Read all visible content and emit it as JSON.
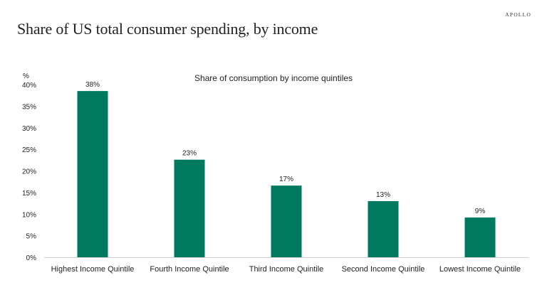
{
  "header": {
    "title": "Share of US total consumer spending, by income",
    "logo": "APOLLO"
  },
  "chart_data": {
    "type": "bar",
    "title": "Share of consumption by income quintiles",
    "ylabel": "%",
    "categories": [
      "Highest Income Quintile",
      "Fourth Income Quintile",
      "Third Income Quintile",
      "Second Income Quintile",
      "Lowest Income Quintile"
    ],
    "values": [
      38.5,
      22.6,
      16.6,
      13.0,
      9.2
    ],
    "data_labels": [
      "38%",
      "23%",
      "17%",
      "13%",
      "9%"
    ],
    "ylim": [
      0,
      40
    ],
    "yticks": [
      "0%",
      "5%",
      "10%",
      "15%",
      "20%",
      "25%",
      "30%",
      "35%",
      "40%"
    ],
    "grid": false,
    "legend": "none",
    "bar_color": "#007A5E"
  }
}
